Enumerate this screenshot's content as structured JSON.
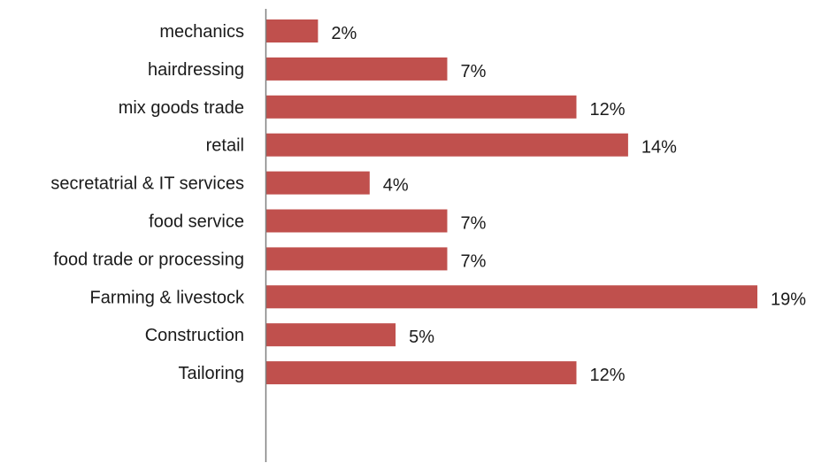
{
  "chart_data": {
    "type": "bar",
    "orientation": "horizontal",
    "title": "",
    "xlabel": "",
    "ylabel": "",
    "categories": [
      "mechanics",
      "hairdressing",
      "mix goods trade",
      "retail",
      "secretatrial & IT services",
      "food service",
      "food trade or processing",
      "Farming & livestock",
      "Construction",
      "Tailoring"
    ],
    "values": [
      2,
      7,
      12,
      14,
      4,
      7,
      7,
      19,
      5,
      12
    ],
    "value_labels": [
      "2%",
      "7%",
      "12%",
      "14%",
      "4%",
      "7%",
      "7%",
      "19%",
      "5%",
      "12%"
    ],
    "xlim": [
      0,
      19
    ],
    "bar_color": "#C0504D",
    "axis_color": "#7f7f7f",
    "grid": false,
    "legend": "none"
  }
}
